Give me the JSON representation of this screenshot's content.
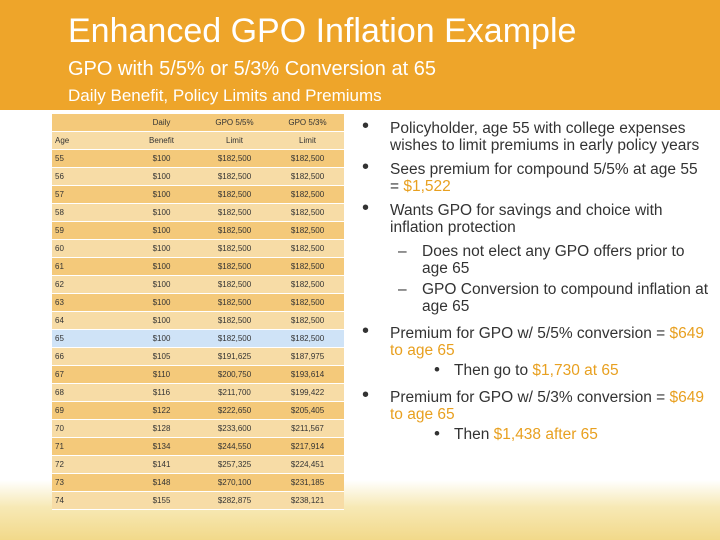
{
  "header": {
    "title": "Enhanced GPO Inflation Example",
    "subtitle": "GPO with 5/5% or 5/3% Conversion at 65",
    "subtitle2": "Daily Benefit, Policy Limits and Premiums"
  },
  "colors": {
    "header": "#eea52a",
    "accent": "#e8a020",
    "row_dark": "#f4c97a",
    "row_light": "#f7dca6",
    "row_highlight": "#cfe3f7"
  },
  "table": {
    "header_row1": [
      "",
      "Daily",
      "GPO 5/5%",
      "GPO 5/3%"
    ],
    "header_row2": [
      "Age",
      "Benefit",
      "Limit",
      "Limit"
    ],
    "rows": [
      [
        "55",
        "$100",
        "$182,500",
        "$182,500"
      ],
      [
        "56",
        "$100",
        "$182,500",
        "$182,500"
      ],
      [
        "57",
        "$100",
        "$182,500",
        "$182,500"
      ],
      [
        "58",
        "$100",
        "$182,500",
        "$182,500"
      ],
      [
        "59",
        "$100",
        "$182,500",
        "$182,500"
      ],
      [
        "60",
        "$100",
        "$182,500",
        "$182,500"
      ],
      [
        "61",
        "$100",
        "$182,500",
        "$182,500"
      ],
      [
        "62",
        "$100",
        "$182,500",
        "$182,500"
      ],
      [
        "63",
        "$100",
        "$182,500",
        "$182,500"
      ],
      [
        "64",
        "$100",
        "$182,500",
        "$182,500"
      ],
      [
        "65",
        "$100",
        "$182,500",
        "$182,500"
      ],
      [
        "66",
        "$105",
        "$191,625",
        "$187,975"
      ],
      [
        "67",
        "$110",
        "$200,750",
        "$193,614"
      ],
      [
        "68",
        "$116",
        "$211,700",
        "$199,422"
      ],
      [
        "69",
        "$122",
        "$222,650",
        "$205,405"
      ],
      [
        "70",
        "$128",
        "$233,600",
        "$211,567"
      ],
      [
        "71",
        "$134",
        "$244,550",
        "$217,914"
      ],
      [
        "72",
        "$141",
        "$257,325",
        "$224,451"
      ],
      [
        "73",
        "$148",
        "$270,100",
        "$231,185"
      ],
      [
        "74",
        "$155",
        "$282,875",
        "$238,121"
      ]
    ],
    "highlight_age": "65"
  },
  "bullets": {
    "b1": "Policyholder, age 55 with college expenses wishes to limit premiums in early policy years",
    "b2_pre": "Sees premium for compound 5/5% at age 55 = ",
    "b2_val": "$1,522",
    "b3": "Wants GPO for savings and choice with inflation protection",
    "b3_sub1": "Does not elect any GPO offers prior to age 65",
    "b3_sub2": "GPO Conversion to compound inflation at age 65",
    "b4_pre": "Premium for GPO w/ 5/5% conversion = ",
    "b4_val": "$649 to age 65",
    "b4_sub_pre": "Then go to ",
    "b4_sub_val": "$1,730 at 65",
    "b5_pre": "Premium for GPO w/ 5/3% conversion = ",
    "b5_val": "$649 to age 65",
    "b5_sub_pre": "Then ",
    "b5_sub_val": "$1,438 after 65"
  }
}
